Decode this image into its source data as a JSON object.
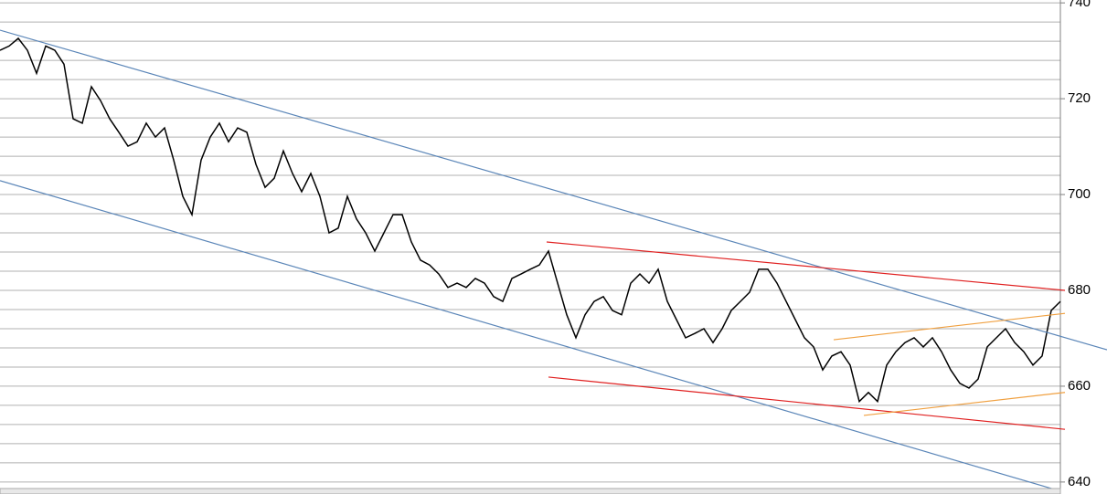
{
  "chart_data": {
    "type": "line",
    "values": [
      730.1,
      731.0,
      732.6,
      730.1,
      725.3,
      731.0,
      730.1,
      727.2,
      715.8,
      714.9,
      722.5,
      719.6,
      715.8,
      713.0,
      710.1,
      711.0,
      714.9,
      712.0,
      713.9,
      707.2,
      699.6,
      695.8,
      707.2,
      712.0,
      714.9,
      711.0,
      713.9,
      713.0,
      706.3,
      701.5,
      703.4,
      709.1,
      704.4,
      700.6,
      704.4,
      699.6,
      692.0,
      693.0,
      699.6,
      694.9,
      692.0,
      688.2,
      692.0,
      695.8,
      695.8,
      690.1,
      686.3,
      685.3,
      683.4,
      680.6,
      681.5,
      680.6,
      682.5,
      681.5,
      678.7,
      677.7,
      682.5,
      683.4,
      684.4,
      685.3,
      688.2,
      681.5,
      674.9,
      670.1,
      674.9,
      677.7,
      678.7,
      675.8,
      674.9,
      681.5,
      683.4,
      681.5,
      684.4,
      677.7,
      673.9,
      670.1,
      671.0,
      672.0,
      669.1,
      672.0,
      675.8,
      677.7,
      679.6,
      684.4,
      684.4,
      681.5,
      677.7,
      673.9,
      670.1,
      668.2,
      663.4,
      666.3,
      667.2,
      664.4,
      656.8,
      658.7,
      656.8,
      664.4,
      667.2,
      669.1,
      670.1,
      668.2,
      670.1,
      667.2,
      663.4,
      660.6,
      659.6,
      661.5,
      668.2,
      670.1,
      672.0,
      669.1,
      667.2,
      664.4,
      666.3,
      675.8,
      677.7
    ],
    "color": "#000000",
    "xlim": [
      0,
      121.1
    ],
    "ylim": [
      637.5,
      740.6
    ],
    "yticks": [
      640,
      660,
      680,
      700,
      720,
      740
    ],
    "ygrid": [
      640,
      644,
      648,
      652,
      656,
      660,
      664,
      668,
      672,
      676,
      680,
      684,
      688,
      692,
      696,
      700,
      704,
      708,
      712,
      716,
      720,
      724,
      728,
      732,
      736,
      740
    ],
    "grid": true,
    "trend_lines": [
      {
        "color": "#5b86b8",
        "x": [
          0,
          121.1
        ],
        "y": [
          734.3,
          667.6
        ]
      },
      {
        "color": "#5b86b8",
        "x": [
          0,
          116
        ],
        "y": [
          702.9,
          638.1
        ]
      },
      {
        "color": "#e02020",
        "x": [
          59.8,
          116.5
        ],
        "y": [
          690.1,
          680.0
        ]
      },
      {
        "color": "#e02020",
        "x": [
          60,
          116.5
        ],
        "y": [
          661.9,
          651.0
        ]
      },
      {
        "color": "#f0a040",
        "x": [
          91.2,
          116.5
        ],
        "y": [
          669.7,
          675.2
        ]
      },
      {
        "color": "#f0a040",
        "x": [
          94.5,
          116.5
        ],
        "y": [
          653.9,
          658.7
        ]
      }
    ]
  }
}
